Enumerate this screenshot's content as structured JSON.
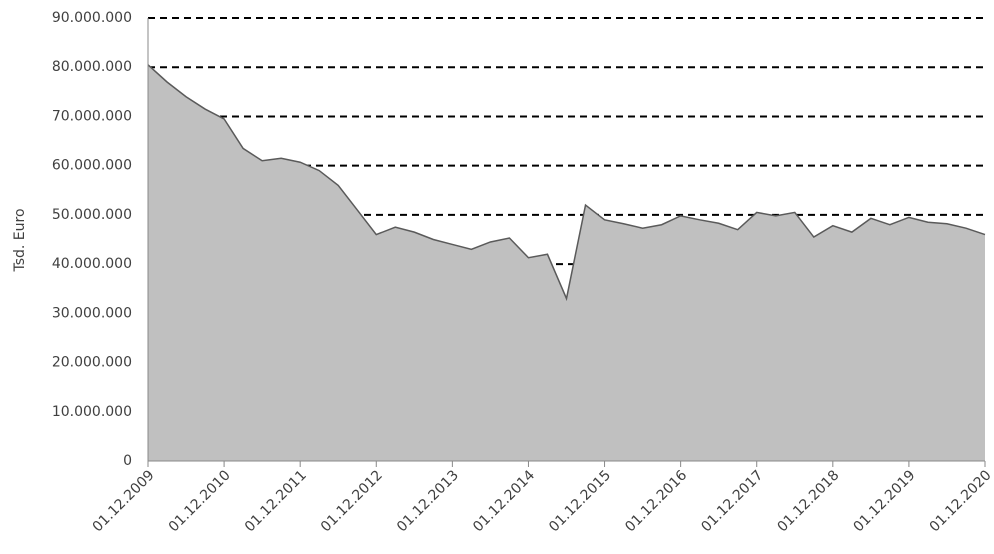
{
  "chart_data": {
    "type": "area",
    "y_label": "Tsd. Euro",
    "categories": [
      "01.12.2009",
      null,
      null,
      null,
      "01.12.2010",
      null,
      null,
      null,
      "01.12.2011",
      null,
      null,
      null,
      "01.12.2012",
      null,
      null,
      null,
      "01.12.2013",
      null,
      null,
      null,
      "01.12.2014",
      null,
      null,
      null,
      "01.12.2015",
      null,
      null,
      null,
      "01.12.2016",
      null,
      null,
      null,
      "01.12.2017",
      null,
      null,
      null,
      "01.12.2018",
      null,
      null,
      null,
      "01.12.2019",
      null,
      null,
      null,
      "01.12.2020"
    ],
    "values": [
      80500000,
      77000000,
      74000000,
      71500000,
      69500000,
      63500000,
      61000000,
      61500000,
      60700000,
      59000000,
      56000000,
      51000000,
      46000000,
      47500000,
      46500000,
      45000000,
      44000000,
      43000000,
      44500000,
      45300000,
      41300000,
      42000000,
      33000000,
      52000000,
      49000000,
      48200000,
      47300000,
      48000000,
      49800000,
      49000000,
      48300000,
      47000000,
      50500000,
      49800000,
      50500000,
      45500000,
      47800000,
      46500000,
      49300000,
      48000000,
      49500000,
      48500000,
      48200000,
      47300000,
      46000000
    ],
    "color": "#c0c0c0",
    "line_color": "#5a5a5a",
    "ylim": [
      0,
      90000000
    ],
    "yticks": [
      0,
      {
        "value": 10000000,
        "label": "10.000.000"
      },
      {
        "value": 20000000,
        "label": "20.000.000"
      },
      {
        "value": 30000000,
        "label": "30.000.000"
      },
      {
        "value": 40000000,
        "label": "40.000.000"
      },
      {
        "value": 50000000,
        "label": "50.000.000"
      },
      {
        "value": 60000000,
        "label": "60.000.000"
      },
      {
        "value": 70000000,
        "label": "70.000.000"
      },
      {
        "value": 80000000,
        "label": "80.000.000"
      },
      {
        "value": 90000000,
        "label": "90.000.000"
      }
    ],
    "grid": true
  }
}
